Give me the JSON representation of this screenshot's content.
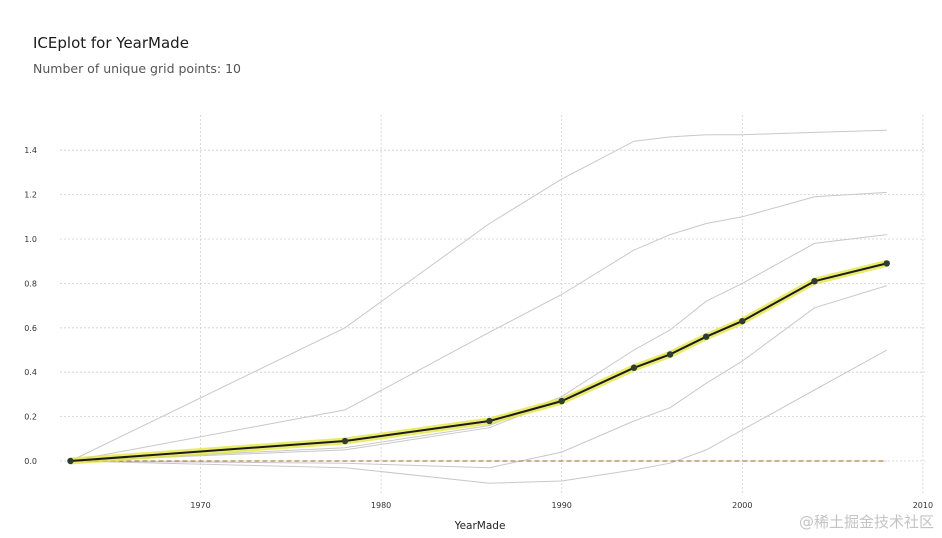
{
  "watermark": "@稀土掘金技术社区",
  "chart_data": {
    "type": "line",
    "title": "ICEplot for YearMade",
    "subtitle": "Number of unique grid points: 10",
    "xlabel": "YearMade",
    "ylabel": "",
    "xlim": [
      1960,
      2010
    ],
    "ylim": [
      -0.12,
      1.55
    ],
    "xticks": [
      1970,
      1980,
      1990,
      2000,
      2010
    ],
    "yticks": [
      0.0,
      0.2,
      0.4,
      0.6,
      0.8,
      1.0,
      1.2,
      1.4
    ],
    "grid": true,
    "x": [
      1962.8,
      1978,
      1986,
      1990,
      1994,
      1996,
      1998,
      2000,
      2004,
      2008
    ],
    "ice_lines": [
      {
        "values": [
          0.0,
          0.6,
          1.07,
          1.27,
          1.44,
          1.46,
          1.47,
          1.47,
          1.48,
          1.49
        ]
      },
      {
        "values": [
          0.0,
          0.23,
          0.58,
          0.75,
          0.95,
          1.02,
          1.07,
          1.1,
          1.19,
          1.21
        ]
      },
      {
        "values": [
          0.0,
          0.06,
          0.16,
          0.29,
          0.5,
          0.59,
          0.72,
          0.8,
          0.98,
          1.02
        ]
      },
      {
        "values": [
          0.0,
          0.05,
          0.15,
          0.28,
          0.42,
          0.49,
          0.56,
          0.63,
          0.81,
          0.89
        ]
      },
      {
        "values": [
          0.0,
          -0.01,
          -0.03,
          0.04,
          0.18,
          0.24,
          0.35,
          0.45,
          0.69,
          0.79
        ]
      },
      {
        "values": [
          0.0,
          -0.03,
          -0.1,
          -0.09,
          -0.04,
          -0.01,
          0.05,
          0.14,
          0.32,
          0.5
        ]
      }
    ],
    "average": {
      "values": [
        0.0,
        0.09,
        0.18,
        0.27,
        0.42,
        0.48,
        0.56,
        0.63,
        0.81,
        0.89
      ]
    },
    "baseline": 0.0,
    "colors": {
      "ice": "#c8c8c8",
      "average": "#1b1b1b",
      "average_glow": "#e4e43a",
      "marker": "#2e3d2e",
      "baseline": "#a8844a",
      "grid": "#cfcfcf"
    }
  }
}
